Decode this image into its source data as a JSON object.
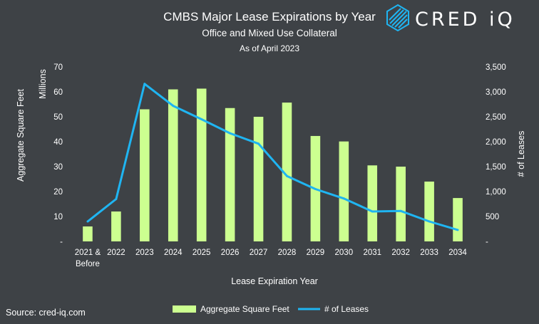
{
  "chart_data": {
    "type": "bar",
    "title": "CMBS Major Lease Expirations by Year",
    "subtitle": "Office and Mixed Use Collateral",
    "subtitle2": "As of April 2023",
    "categories": [
      "2021 & Before",
      "2022",
      "2023",
      "2024",
      "2025",
      "2026",
      "2027",
      "2028",
      "2029",
      "2030",
      "2031",
      "2032",
      "2033",
      "2034"
    ],
    "category_lines": [
      [
        "2021 &",
        "Before"
      ],
      [
        "2022"
      ],
      [
        "2023"
      ],
      [
        "2024"
      ],
      [
        "2025"
      ],
      [
        "2026"
      ],
      [
        "2027"
      ],
      [
        "2028"
      ],
      [
        "2029"
      ],
      [
        "2030"
      ],
      [
        "2031"
      ],
      [
        "2032"
      ],
      [
        "2033"
      ],
      [
        "2034"
      ]
    ],
    "series": [
      {
        "name": "Aggregate Square Feet",
        "type": "bar",
        "axis": "left",
        "color": "#ccff90",
        "values": [
          6,
          12,
          53,
          61,
          61.3,
          53.5,
          50,
          55.7,
          42.3,
          40.1,
          30.5,
          30,
          24,
          17.4
        ]
      },
      {
        "name": "# of Leases",
        "type": "line",
        "axis": "right",
        "color": "#1fb5f2",
        "values": [
          400,
          850,
          3160,
          2720,
          2450,
          2170,
          1960,
          1310,
          1050,
          860,
          600,
          610,
          400,
          230
        ]
      }
    ],
    "left_axis": {
      "label": "Aggregate Square Feet",
      "unit": "Millions",
      "ylim": [
        0,
        70
      ],
      "ticks": [
        "-",
        "10",
        "20",
        "30",
        "40",
        "50",
        "60",
        "70"
      ]
    },
    "right_axis": {
      "label": "# of Leases",
      "ylim": [
        0,
        3500
      ],
      "ticks": [
        "-",
        "500",
        "1,000",
        "1,500",
        "2,000",
        "2,500",
        "3,000",
        "3,500"
      ]
    },
    "xlabel": "Lease Expiration Year",
    "grid": false,
    "legend": "bottom-center"
  },
  "source": "Source: cred-iq.com",
  "brand": "CRED iQ",
  "colors": {
    "background": "#3e4246",
    "bar": "#ccff90",
    "line": "#1fb5f2",
    "text": "#ffffff"
  }
}
